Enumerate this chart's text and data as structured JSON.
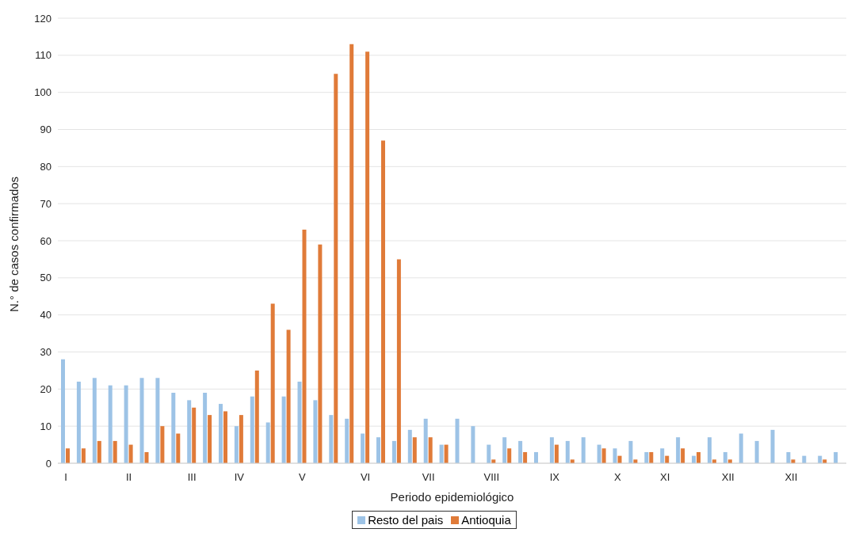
{
  "chart_data": {
    "type": "bar",
    "xlabel": "Periodo epidemiológico",
    "ylabel": "N.° de casos confirmados",
    "categories": [
      "I",
      null,
      null,
      null,
      "II",
      null,
      null,
      null,
      "III",
      null,
      null,
      "IV",
      null,
      null,
      null,
      "V",
      null,
      null,
      null,
      "VI",
      null,
      null,
      null,
      "VII",
      null,
      null,
      null,
      "VIII",
      null,
      null,
      null,
      "IX",
      null,
      null,
      null,
      "X",
      null,
      null,
      "XI",
      null,
      null,
      null,
      "XII",
      null,
      null,
      null,
      "XII",
      null,
      null,
      null
    ],
    "series": [
      {
        "name": "Resto del pais",
        "color": "#9dc3e6",
        "values": [
          28,
          22,
          23,
          21,
          21,
          23,
          23,
          19,
          17,
          19,
          16,
          10,
          18,
          11,
          18,
          22,
          17,
          13,
          12,
          8,
          7,
          6,
          9,
          12,
          5,
          12,
          10,
          5,
          7,
          6,
          3,
          7,
          6,
          7,
          5,
          4,
          6,
          3,
          4,
          7,
          2,
          7,
          3,
          8,
          6,
          9,
          3,
          2,
          2,
          3
        ]
      },
      {
        "name": "Antioquia",
        "color": "#e07b39",
        "values": [
          4,
          4,
          6,
          6,
          5,
          3,
          10,
          8,
          15,
          13,
          14,
          13,
          25,
          43,
          36,
          63,
          59,
          105,
          113,
          111,
          87,
          55,
          7,
          7,
          5,
          0,
          0,
          1,
          4,
          3,
          0,
          5,
          1,
          0,
          4,
          2,
          1,
          3,
          2,
          4,
          3,
          1,
          1,
          0,
          0,
          0,
          1,
          0,
          1,
          0
        ]
      }
    ],
    "ylim": [
      0,
      120
    ],
    "yticks": [
      0,
      10,
      20,
      30,
      40,
      50,
      60,
      70,
      80,
      90,
      100,
      110,
      120
    ],
    "grid": "y",
    "legend": "bottom"
  }
}
